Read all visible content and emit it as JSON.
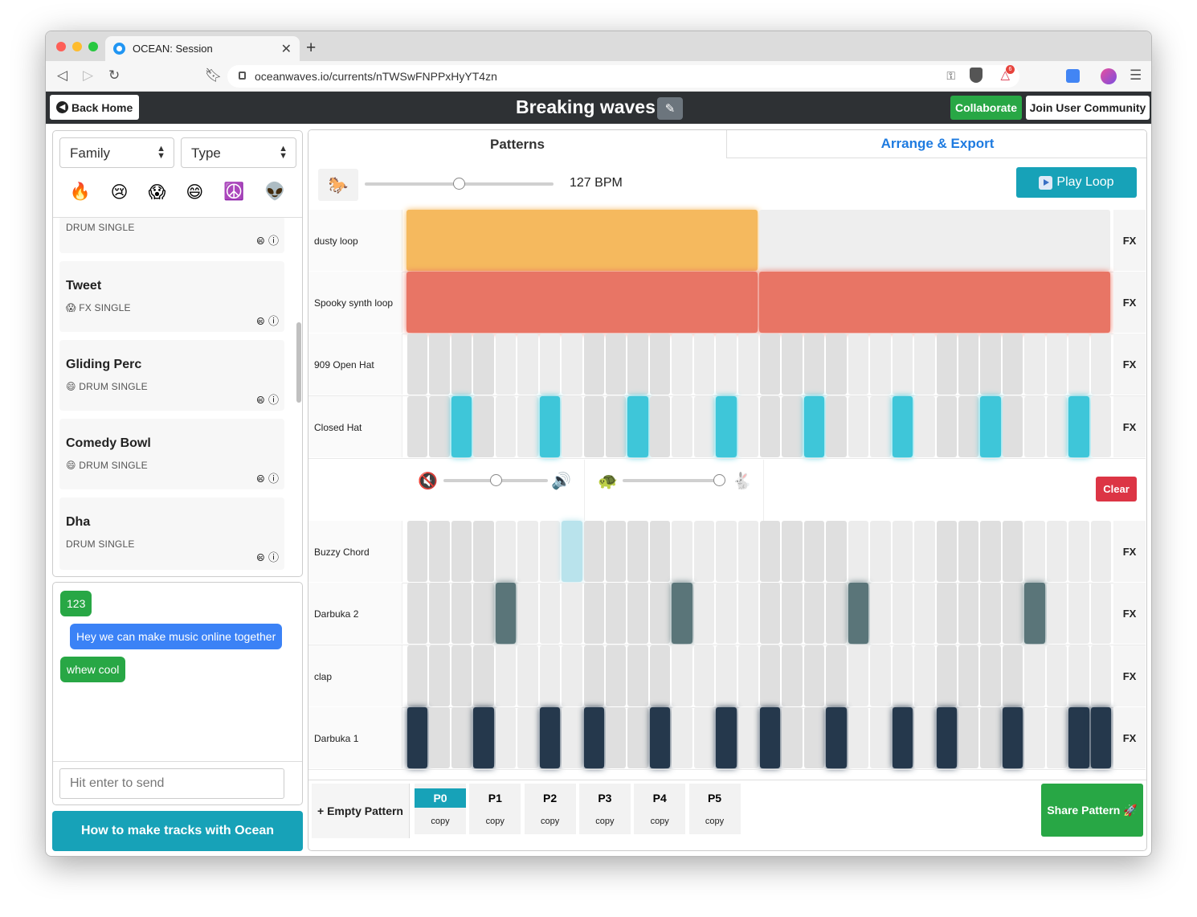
{
  "browser": {
    "tab_title": "OCEAN: Session",
    "url": "oceanwaves.io/currents/nTWSwFNPPxHyYT4zn",
    "notification_count": "6"
  },
  "app": {
    "back_label": "Back Home",
    "session_title": "Breaking waves",
    "collaborate_label": "Collaborate",
    "join_label": "Join User Community"
  },
  "filters": {
    "family": "Family",
    "type": "Type",
    "emojis": [
      "🔥",
      "😢",
      "😱",
      "😄",
      "☮️",
      "👽"
    ]
  },
  "samples": [
    {
      "name": "",
      "emoji": "",
      "tag": "DRUM SINGLE",
      "license": "🅭 ⓘ"
    },
    {
      "name": "Tweet",
      "emoji": "😱",
      "tag": "FX SINGLE",
      "license": "🅭 ⓘ"
    },
    {
      "name": "Gliding Perc",
      "emoji": "😄",
      "tag": "DRUM SINGLE",
      "license": "🅭 ⓘ"
    },
    {
      "name": "Comedy Bowl",
      "emoji": "😄",
      "tag": "DRUM SINGLE",
      "license": "🅭 ⓘ"
    },
    {
      "name": "Dha",
      "emoji": "",
      "tag": "DRUM SINGLE",
      "license": "🅭 ⓘ"
    }
  ],
  "chat": {
    "messages": [
      {
        "text": "123",
        "color": "#28a745"
      },
      {
        "text": "Hey we can make music online together",
        "color": "#3b82f6"
      },
      {
        "text": "whew cool",
        "color": "#28a745"
      }
    ],
    "placeholder": "Hit enter to send"
  },
  "howto_label": "How to make tracks with Ocean",
  "tabs": {
    "patterns": "Patterns",
    "arrange": "Arrange & Export"
  },
  "tempo": {
    "bpm_label": "127 BPM",
    "bpm": 127,
    "slider_fraction": 0.5
  },
  "play_label": "Play Loop",
  "fx_label": "FX",
  "clear_label": "Clear",
  "volume_fraction": 0.5,
  "speed_fraction": 1.0,
  "tracks": [
    {
      "name": "dusty loop",
      "kind": "loop",
      "color": "#f5b95e",
      "blocks": [
        1,
        0
      ]
    },
    {
      "name": "Spooky synth loop",
      "kind": "loop",
      "color": "#e87565",
      "blocks": [
        1,
        1
      ]
    },
    {
      "name": "909 Open Hat",
      "kind": "steps",
      "color": "#3ec6d9",
      "steps": [
        0,
        0,
        0,
        0,
        0,
        0,
        0,
        0,
        0,
        0,
        0,
        0,
        0,
        0,
        0,
        0,
        0,
        0,
        0,
        0,
        0,
        0,
        0,
        0,
        0,
        0,
        0,
        0,
        0,
        0,
        0,
        0
      ]
    },
    {
      "name": "Closed Hat",
      "kind": "steps",
      "color": "#3ec6d9",
      "steps": [
        0,
        0,
        1,
        0,
        0,
        0,
        1,
        0,
        0,
        0,
        1,
        0,
        0,
        0,
        1,
        0,
        0,
        0,
        1,
        0,
        0,
        0,
        1,
        0,
        0,
        0,
        1,
        0,
        0,
        0,
        1,
        0
      ]
    },
    {
      "name": "Buzzy Chord",
      "kind": "steps",
      "color": "#b9e3ec",
      "steps": [
        0,
        0,
        0,
        0,
        0,
        0,
        0,
        1,
        0,
        0,
        0,
        0,
        0,
        0,
        0,
        0,
        0,
        0,
        0,
        0,
        0,
        0,
        0,
        0,
        0,
        0,
        0,
        0,
        0,
        0,
        0,
        0
      ]
    },
    {
      "name": "Darbuka 2",
      "kind": "steps",
      "color": "#5a7579",
      "steps": [
        0,
        0,
        0,
        0,
        1,
        0,
        0,
        0,
        0,
        0,
        0,
        0,
        1,
        0,
        0,
        0,
        0,
        0,
        0,
        0,
        1,
        0,
        0,
        0,
        0,
        0,
        0,
        0,
        1,
        0,
        0,
        0
      ]
    },
    {
      "name": "clap",
      "kind": "steps",
      "color": "#444444",
      "steps": [
        0,
        0,
        0,
        0,
        0,
        0,
        0,
        0,
        0,
        0,
        0,
        0,
        0,
        0,
        0,
        0,
        0,
        0,
        0,
        0,
        0,
        0,
        0,
        0,
        0,
        0,
        0,
        0,
        0,
        0,
        0,
        0
      ]
    },
    {
      "name": "Darbuka 1",
      "kind": "steps",
      "color": "#25384c",
      "steps": [
        1,
        0,
        0,
        1,
        0,
        0,
        1,
        0,
        1,
        0,
        0,
        1,
        0,
        0,
        1,
        0,
        1,
        0,
        0,
        1,
        0,
        0,
        1,
        0,
        1,
        0,
        0,
        1,
        0,
        0,
        1,
        1
      ]
    }
  ],
  "patterns": {
    "empty_label": "+ Empty Pattern",
    "items": [
      {
        "label": "P0",
        "copy": "copy",
        "active": true
      },
      {
        "label": "P1",
        "copy": "copy",
        "active": false
      },
      {
        "label": "P2",
        "copy": "copy",
        "active": false
      },
      {
        "label": "P3",
        "copy": "copy",
        "active": false
      },
      {
        "label": "P4",
        "copy": "copy",
        "active": false
      },
      {
        "label": "P5",
        "copy": "copy",
        "active": false
      }
    ],
    "share_label": "Share Pattern 🚀"
  }
}
